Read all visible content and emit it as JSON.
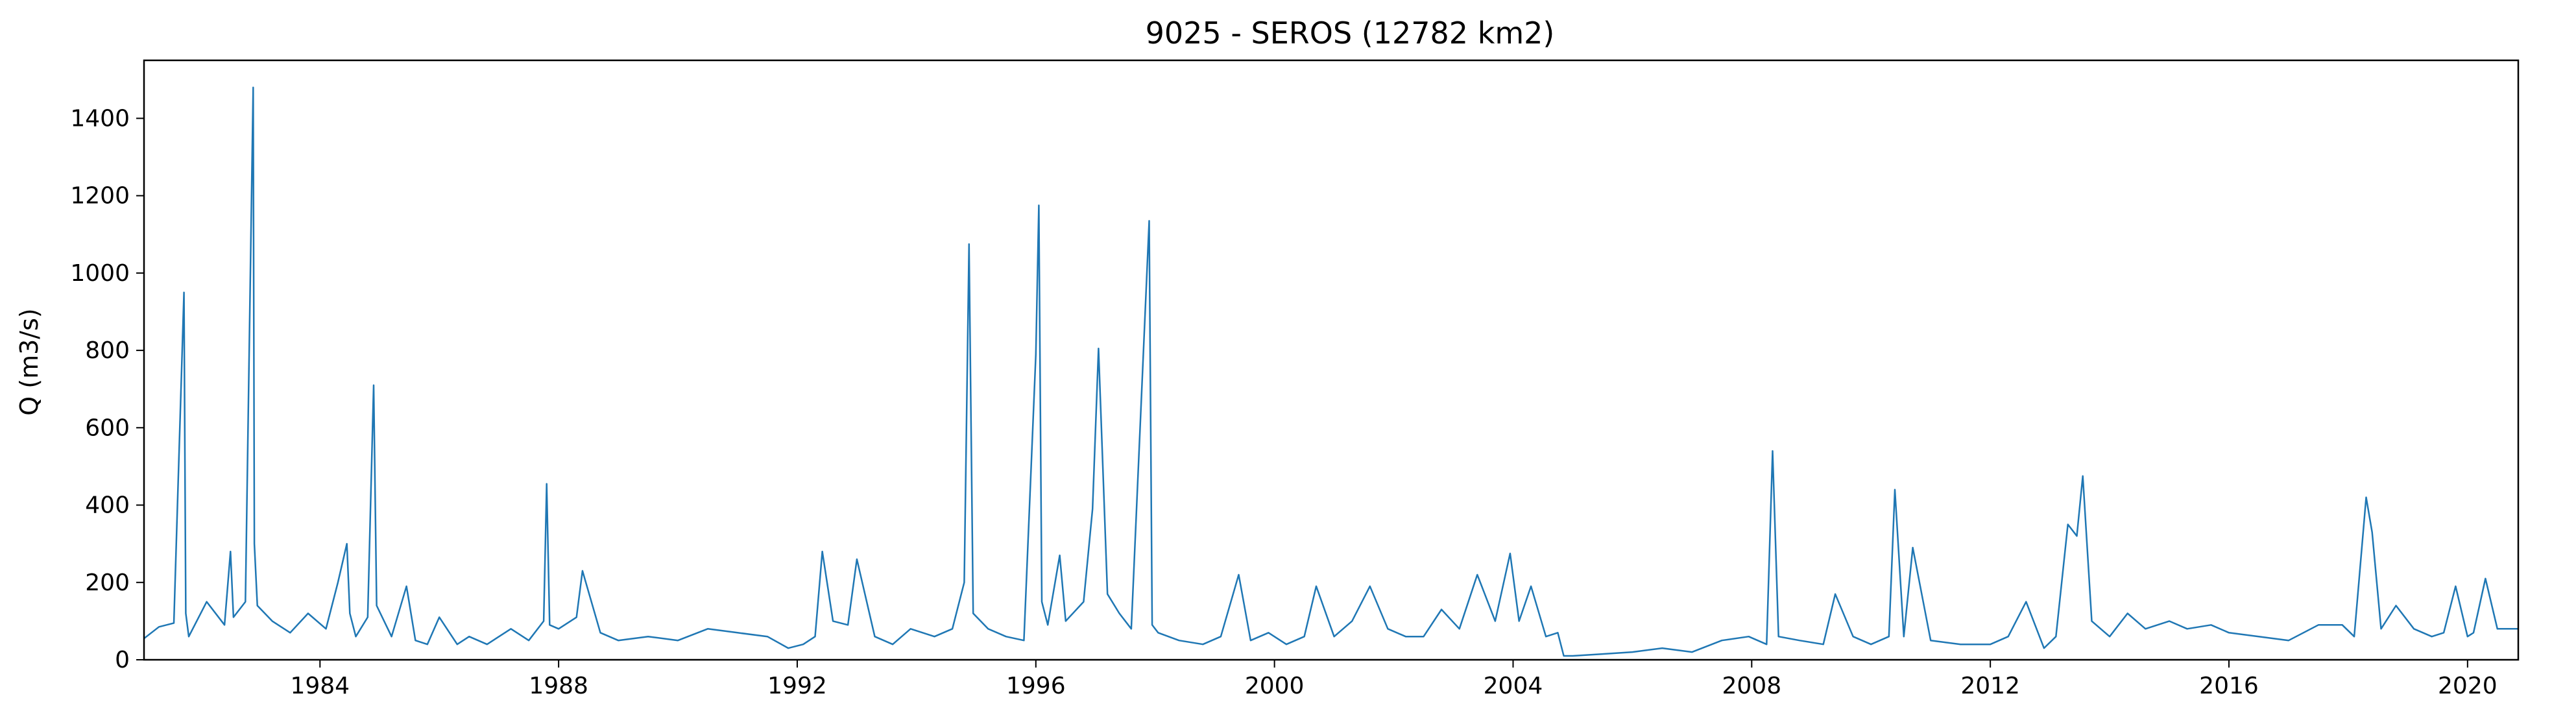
{
  "chart_data": {
    "type": "line",
    "title": "9025 - SEROS (12782 km2)",
    "xlabel": "",
    "ylabel": "Q (m3/s)",
    "xlim": [
      1981.05,
      2020.85
    ],
    "ylim": [
      0,
      1550
    ],
    "x_ticks": [
      1984,
      1988,
      1992,
      1996,
      2000,
      2004,
      2008,
      2012,
      2016,
      2020
    ],
    "y_ticks": [
      0,
      200,
      400,
      600,
      800,
      1000,
      1200,
      1400
    ],
    "grid": false,
    "legend": "none",
    "color": "#1f77b4",
    "series": [
      {
        "x": [
          1981.05,
          1981.3,
          1981.55,
          1981.72,
          1981.75,
          1981.8,
          1982.1,
          1982.4,
          1982.5,
          1982.55,
          1982.75,
          1982.88,
          1982.9,
          1982.95,
          1983.2,
          1983.5,
          1983.8,
          1984.1,
          1984.3,
          1984.45,
          1984.5,
          1984.6,
          1984.8,
          1984.9,
          1984.95,
          1985.2,
          1985.45,
          1985.6,
          1985.8,
          1986.0,
          1986.3,
          1986.5,
          1986.8,
          1987.2,
          1987.5,
          1987.75,
          1987.8,
          1987.85,
          1988.0,
          1988.3,
          1988.4,
          1988.7,
          1989.0,
          1989.5,
          1990.0,
          1990.5,
          1991.0,
          1991.5,
          1991.85,
          1992.1,
          1992.3,
          1992.42,
          1992.6,
          1992.85,
          1993.0,
          1993.3,
          1993.6,
          1993.9,
          1994.3,
          1994.6,
          1994.8,
          1994.88,
          1994.95,
          1995.2,
          1995.5,
          1995.8,
          1996.0,
          1996.05,
          1996.1,
          1996.2,
          1996.4,
          1996.5,
          1996.8,
          1996.95,
          1997.05,
          1997.2,
          1997.4,
          1997.6,
          1997.9,
          1997.95,
          1998.05,
          1998.4,
          1998.8,
          1999.1,
          1999.4,
          1999.6,
          1999.9,
          2000.2,
          2000.5,
          2000.7,
          2001.0,
          2001.3,
          2001.6,
          2001.9,
          2002.2,
          2002.5,
          2002.8,
          2003.1,
          2003.4,
          2003.7,
          2003.95,
          2004.1,
          2004.3,
          2004.55,
          2004.75,
          2004.85,
          2005.0,
          2005.5,
          2006.0,
          2006.5,
          2007.0,
          2007.5,
          2007.95,
          2008.25,
          2008.35,
          2008.45,
          2008.8,
          2009.2,
          2009.4,
          2009.7,
          2010.0,
          2010.3,
          2010.4,
          2010.55,
          2010.7,
          2011.0,
          2011.5,
          2012.0,
          2012.3,
          2012.6,
          2012.9,
          2013.1,
          2013.3,
          2013.45,
          2013.55,
          2013.7,
          2014.0,
          2014.3,
          2014.6,
          2015.0,
          2015.3,
          2015.7,
          2016.0,
          2016.5,
          2017.0,
          2017.5,
          2017.9,
          2018.1,
          2018.3,
          2018.4,
          2018.55,
          2018.8,
          2019.1,
          2019.4,
          2019.6,
          2019.8,
          2020.0,
          2020.1,
          2020.3,
          2020.5,
          2020.85
        ],
        "y": [
          55,
          85,
          95,
          950,
          120,
          60,
          150,
          90,
          280,
          110,
          150,
          1480,
          300,
          140,
          100,
          70,
          120,
          80,
          200,
          300,
          120,
          60,
          110,
          710,
          140,
          60,
          190,
          50,
          40,
          110,
          40,
          60,
          40,
          80,
          50,
          100,
          455,
          90,
          80,
          110,
          230,
          70,
          50,
          60,
          50,
          80,
          70,
          60,
          30,
          40,
          60,
          280,
          100,
          90,
          260,
          60,
          40,
          80,
          60,
          80,
          200,
          1075,
          120,
          80,
          60,
          50,
          790,
          1175,
          150,
          90,
          270,
          100,
          150,
          390,
          805,
          170,
          120,
          80,
          1135,
          90,
          70,
          50,
          40,
          60,
          220,
          50,
          70,
          40,
          60,
          190,
          60,
          100,
          190,
          80,
          60,
          60,
          130,
          80,
          220,
          100,
          275,
          100,
          190,
          60,
          70,
          10,
          10,
          15,
          20,
          30,
          20,
          50,
          60,
          40,
          540,
          60,
          50,
          40,
          170,
          60,
          40,
          60,
          440,
          60,
          290,
          50,
          40,
          40,
          60,
          150,
          30,
          60,
          350,
          320,
          475,
          100,
          60,
          120,
          80,
          100,
          80,
          90,
          70,
          60,
          50,
          90,
          90,
          60,
          420,
          330,
          80,
          140,
          80,
          60,
          70,
          190,
          60,
          70,
          210,
          80,
          80
        ]
      }
    ]
  }
}
